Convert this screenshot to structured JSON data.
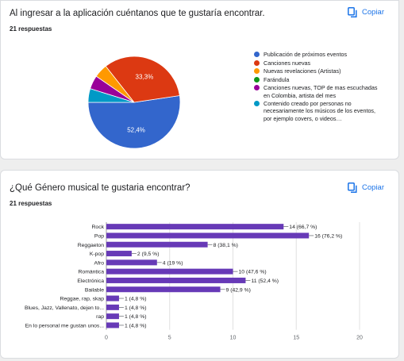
{
  "question1": {
    "title": "Al ingresar a la aplicación cuéntanos que te gustaría encontrar.",
    "responses": "21 respuestas",
    "copy_label": "Copiar"
  },
  "question2": {
    "title": "¿Qué Género musical te gustaria encontrar?",
    "responses": "21 respuestas",
    "copy_label": "Copiar"
  },
  "chart_data": [
    {
      "type": "pie",
      "labels": [
        "Publicación de próximos eventos",
        "Canciones nuevas",
        "Nuevas revelaciones (Artistas)",
        "Farándula",
        "Canciones nuevas, TOP de mas escuchadas en Colombia, artista del mes",
        "Contenido creado por personas no necesariamente los músicos de los eventos, por ejemplo covers, o videos…"
      ],
      "values": [
        52.4,
        33.3,
        4.8,
        0,
        4.8,
        4.8
      ],
      "slice_labels": [
        "52,4%",
        "33,3%",
        "",
        "",
        "",
        ""
      ],
      "colors": [
        "#3366cc",
        "#dc3912",
        "#ff9900",
        "#109618",
        "#990099",
        "#0099c6"
      ],
      "legend_position": "right"
    },
    {
      "type": "bar",
      "orientation": "horizontal",
      "categories": [
        "Rock",
        "Pop",
        "Reggaeton",
        "K-pop",
        "Afro",
        "Romántica",
        "Electrónica",
        "Bailable",
        "Reggae, rap, skap",
        "Blues, Jazz, Vallenato, dejen to...",
        "rap",
        "En lo personal me gustan unos..."
      ],
      "values": [
        14,
        16,
        8,
        2,
        4,
        10,
        11,
        9,
        1,
        1,
        1,
        1
      ],
      "value_labels": [
        "14 (66,7 %)",
        "16 (76,2 %)",
        "8 (38,1 %)",
        "2 (9,5 %)",
        "4 (19 %)",
        "10 (47,6 %)",
        "11 (52,4 %)",
        "9 (42,9 %)",
        "1 (4,8 %)",
        "1 (4,8 %)",
        "1 (4,8 %)",
        "1 (4,8 %)"
      ],
      "xlim": [
        0,
        20
      ],
      "x_ticks": [
        0,
        5,
        10,
        15,
        20
      ],
      "grid": true,
      "bar_color": "#673ab7"
    }
  ]
}
